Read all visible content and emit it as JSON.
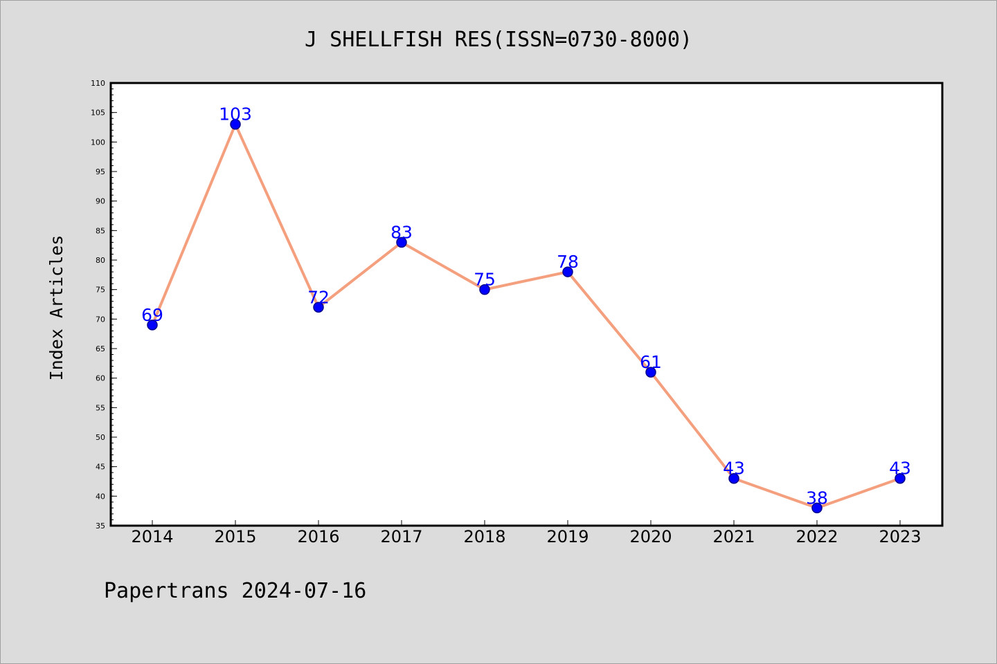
{
  "chart_data": {
    "type": "line",
    "title": "J SHELLFISH RES(ISSN=0730-8000)",
    "ylabel": "Index Articles",
    "xlabel": "",
    "categories": [
      "2014",
      "2015",
      "2016",
      "2017",
      "2018",
      "2019",
      "2020",
      "2021",
      "2022",
      "2023"
    ],
    "series": [
      {
        "values": [
          69,
          103,
          72,
          83,
          75,
          78,
          61,
          43,
          38,
          43
        ]
      }
    ],
    "ylim": [
      35,
      110
    ],
    "ytick_step": 5,
    "yminor_step": 1,
    "grid": false,
    "data_labels": true,
    "colors": {
      "line": "#f4a07f",
      "marker": "#0000ff",
      "marker_edge": "#00008b",
      "data_label": "#0000ff"
    }
  },
  "footer": "Papertrans 2024-07-16",
  "colors": {
    "background": "#dcdcdc",
    "plot_background": "#ffffff"
  }
}
